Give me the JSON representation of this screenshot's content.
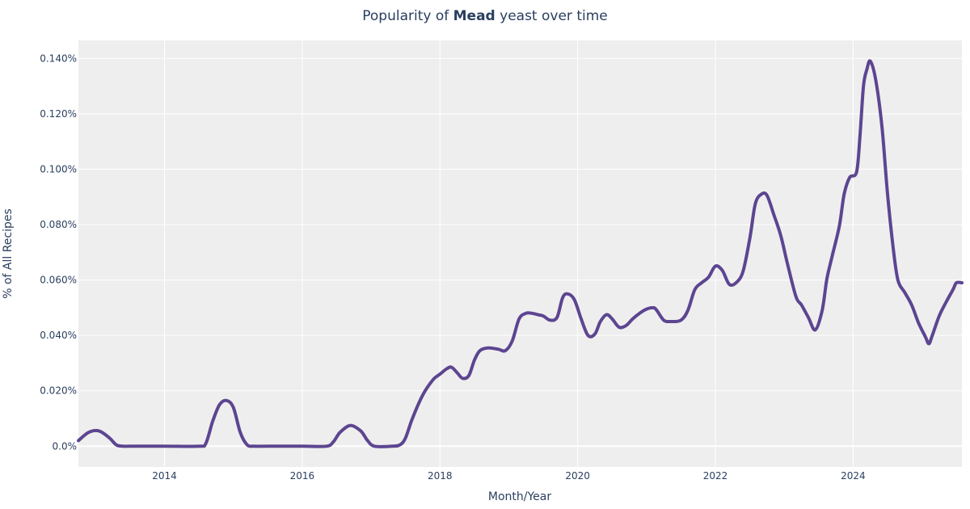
{
  "chart_data": {
    "type": "line",
    "title_prefix": "Popularity of ",
    "title_bold": "Mead",
    "title_suffix": " yeast over time",
    "xlabel": "Month/Year",
    "ylabel": "% of All Recipes",
    "xlim": [
      2012.75,
      2025.58
    ],
    "ylim": [
      -0.0075,
      0.1465
    ],
    "x_ticks": [
      2014,
      2016,
      2018,
      2020,
      2022,
      2024
    ],
    "x_tick_labels": [
      "2014",
      "2016",
      "2018",
      "2020",
      "2022",
      "2024"
    ],
    "y_ticks": [
      0,
      0.02,
      0.04,
      0.06,
      0.08,
      0.1,
      0.12,
      0.14
    ],
    "y_tick_labels": [
      "0.0%",
      "0.020%",
      "0.040%",
      "0.060%",
      "0.080%",
      "0.100%",
      "0.120%",
      "0.140%"
    ],
    "grid": true,
    "colors": {
      "line": "#5c4591",
      "plot_bg": "#efeeee",
      "grid": "#ffffff",
      "text": "#2a3f5f"
    },
    "series": [
      {
        "name": "Mead",
        "x": [
          2012.75,
          2012.9,
          2013.05,
          2013.2,
          2013.3,
          2013.4,
          2013.5,
          2014.0,
          2014.5,
          2014.6,
          2014.7,
          2014.8,
          2014.9,
          2015.0,
          2015.1,
          2015.2,
          2015.3,
          2015.5,
          2016.0,
          2016.35,
          2016.45,
          2016.55,
          2016.7,
          2016.85,
          2016.95,
          2017.05,
          2017.3,
          2017.42,
          2017.5,
          2017.6,
          2017.75,
          2017.9,
          2018.0,
          2018.1,
          2018.17,
          2018.25,
          2018.33,
          2018.42,
          2018.5,
          2018.58,
          2018.7,
          2018.85,
          2018.95,
          2019.05,
          2019.15,
          2019.25,
          2019.33,
          2019.42,
          2019.5,
          2019.6,
          2019.7,
          2019.78,
          2019.85,
          2019.95,
          2020.05,
          2020.15,
          2020.25,
          2020.33,
          2020.42,
          2020.5,
          2020.6,
          2020.7,
          2020.8,
          2020.9,
          2021.0,
          2021.1,
          2021.15,
          2021.25,
          2021.35,
          2021.5,
          2021.6,
          2021.7,
          2021.8,
          2021.9,
          2022.0,
          2022.1,
          2022.2,
          2022.3,
          2022.4,
          2022.5,
          2022.58,
          2022.67,
          2022.75,
          2022.85,
          2022.95,
          2023.05,
          2023.17,
          2023.25,
          2023.35,
          2023.45,
          2023.55,
          2023.62,
          2023.7,
          2023.8,
          2023.87,
          2023.95,
          2024.05,
          2024.1,
          2024.15,
          2024.2,
          2024.25,
          2024.33,
          2024.42,
          2024.5,
          2024.58,
          2024.65,
          2024.75,
          2024.85,
          2024.95,
          2025.05,
          2025.1,
          2025.15,
          2025.25,
          2025.35,
          2025.45,
          2025.5,
          2025.58
        ],
        "y": [
          0.002,
          0.005,
          0.0055,
          0.003,
          0.0005,
          0.0,
          0.0,
          0.0,
          0.0,
          0.001,
          0.009,
          0.015,
          0.0165,
          0.014,
          0.005,
          0.0005,
          0.0,
          0.0,
          0.0,
          0.0,
          0.0015,
          0.005,
          0.0075,
          0.0055,
          0.002,
          0.0,
          0.0,
          0.0005,
          0.003,
          0.01,
          0.0185,
          0.024,
          0.026,
          0.028,
          0.0285,
          0.0265,
          0.0245,
          0.0255,
          0.031,
          0.0345,
          0.0355,
          0.035,
          0.0345,
          0.038,
          0.046,
          0.048,
          0.048,
          0.0475,
          0.047,
          0.0455,
          0.0465,
          0.0535,
          0.055,
          0.053,
          0.046,
          0.04,
          0.0405,
          0.045,
          0.0475,
          0.046,
          0.043,
          0.0435,
          0.046,
          0.048,
          0.0495,
          0.05,
          0.049,
          0.0455,
          0.045,
          0.0455,
          0.049,
          0.0565,
          0.059,
          0.061,
          0.065,
          0.0635,
          0.0585,
          0.059,
          0.063,
          0.075,
          0.0875,
          0.091,
          0.0905,
          0.0835,
          0.076,
          0.0655,
          0.054,
          0.051,
          0.0465,
          0.042,
          0.049,
          0.0605,
          0.069,
          0.0795,
          0.091,
          0.097,
          0.099,
          0.112,
          0.13,
          0.136,
          0.139,
          0.132,
          0.115,
          0.091,
          0.072,
          0.06,
          0.0555,
          0.051,
          0.0445,
          0.0395,
          0.037,
          0.04,
          0.047,
          0.052,
          0.0565,
          0.059,
          0.059
        ]
      }
    ]
  }
}
